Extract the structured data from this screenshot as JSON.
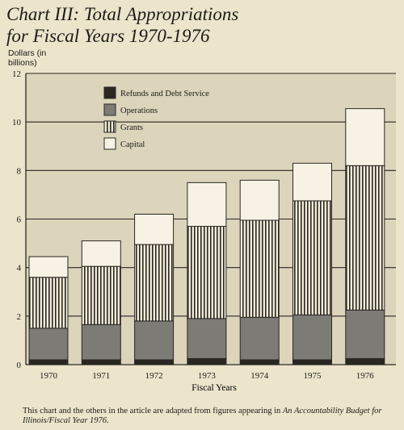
{
  "chart_data": {
    "type": "bar",
    "stacked": true,
    "title": "Chart III: Total Appropriations",
    "subtitle": "for Fiscal Years 1970-1976",
    "ylabel_line1": "Dollars (in",
    "ylabel_line2": "billions)",
    "xlabel": "Fiscal Years",
    "categories": [
      "1970",
      "1971",
      "1972",
      "1973",
      "1974",
      "1975",
      "1976"
    ],
    "ylim": [
      0,
      12
    ],
    "yticks": [
      0,
      2,
      4,
      6,
      8,
      10,
      12
    ],
    "grid": true,
    "legend_position": "top-left",
    "series": [
      {
        "name": "Refunds and Debt Service",
        "values": [
          0.2,
          0.2,
          0.2,
          0.25,
          0.2,
          0.2,
          0.25
        ],
        "color": "#2a2723",
        "pattern": "solid"
      },
      {
        "name": "Operations",
        "values": [
          1.3,
          1.45,
          1.6,
          1.65,
          1.75,
          1.85,
          2.0
        ],
        "color": "#7d7b76",
        "pattern": "solid"
      },
      {
        "name": "Grants",
        "values": [
          2.1,
          2.4,
          3.15,
          3.8,
          4.0,
          4.7,
          5.95
        ],
        "color": "#f2ecd9",
        "pattern": "vertical-stripes"
      },
      {
        "name": "Capital",
        "values": [
          0.85,
          1.05,
          1.25,
          1.8,
          1.65,
          1.55,
          2.35
        ],
        "color": "#f7f2e4",
        "pattern": "solid"
      }
    ]
  },
  "footnote": {
    "text": "This chart and the others in the article are adapted from figures appearing in ",
    "source": "An Accountability Budget for Illinois/Fiscal Year 1976."
  }
}
